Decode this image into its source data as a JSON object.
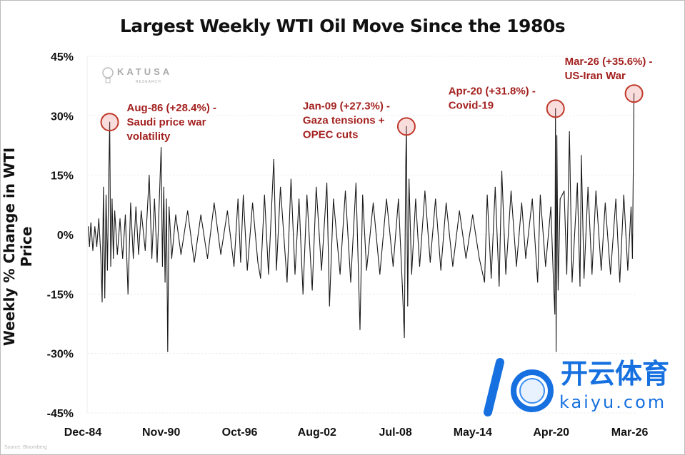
{
  "chart_data": {
    "type": "line",
    "title": "Largest Weekly WTI Oil Move Since the 1980s",
    "xlabel": "",
    "ylabel": "Weekly % Change in WTI Price",
    "ylim": [
      -45,
      45
    ],
    "xlim": [
      1984.92,
      2026.3
    ],
    "yticks": [
      {
        "v": 45,
        "label": "45%"
      },
      {
        "v": 30,
        "label": "30%"
      },
      {
        "v": 15,
        "label": "15%"
      },
      {
        "v": 0,
        "label": "0%"
      },
      {
        "v": -15,
        "label": "-15%"
      },
      {
        "v": -30,
        "label": "-30%"
      },
      {
        "v": -45,
        "label": "-45%"
      }
    ],
    "xticks": [
      {
        "v": 1984.92,
        "label": "Dec-84"
      },
      {
        "v": 1990.83,
        "label": "Nov-90"
      },
      {
        "v": 1996.75,
        "label": "Oct-96"
      },
      {
        "v": 2002.58,
        "label": "Aug-02"
      },
      {
        "v": 2008.5,
        "label": "Jul-08"
      },
      {
        "v": 2014.33,
        "label": "May-14"
      },
      {
        "v": 2020.25,
        "label": "Apr-20"
      },
      {
        "v": 2026.17,
        "label": "Mar-26"
      }
    ],
    "series": [
      {
        "name": "Weekly % change in WTI",
        "color": "#1a1a1a",
        "points": [
          [
            1985.0,
            2
          ],
          [
            1985.1,
            -3
          ],
          [
            1985.2,
            3
          ],
          [
            1985.35,
            -4
          ],
          [
            1985.5,
            2
          ],
          [
            1985.65,
            -3
          ],
          [
            1985.8,
            4
          ],
          [
            1985.95,
            -5
          ],
          [
            1986.05,
            -17
          ],
          [
            1986.15,
            12
          ],
          [
            1986.25,
            -16
          ],
          [
            1986.35,
            10
          ],
          [
            1986.45,
            -9
          ],
          [
            1986.55,
            15
          ],
          [
            1986.62,
            28.4
          ],
          [
            1986.7,
            -8
          ],
          [
            1986.8,
            9
          ],
          [
            1986.9,
            -6
          ],
          [
            1987.0,
            6
          ],
          [
            1987.2,
            -5
          ],
          [
            1987.4,
            4
          ],
          [
            1987.6,
            -6
          ],
          [
            1987.8,
            5
          ],
          [
            1988.0,
            -15
          ],
          [
            1988.2,
            8
          ],
          [
            1988.4,
            -6
          ],
          [
            1988.6,
            7
          ],
          [
            1988.8,
            -5
          ],
          [
            1989.0,
            6
          ],
          [
            1989.3,
            -4
          ],
          [
            1989.6,
            15
          ],
          [
            1989.8,
            -6
          ],
          [
            1990.0,
            9
          ],
          [
            1990.2,
            -7
          ],
          [
            1990.5,
            22
          ],
          [
            1990.6,
            -8
          ],
          [
            1990.7,
            12
          ],
          [
            1990.8,
            -12
          ],
          [
            1990.9,
            9
          ],
          [
            1991.0,
            -29.5
          ],
          [
            1991.1,
            7
          ],
          [
            1991.3,
            -6
          ],
          [
            1991.6,
            5
          ],
          [
            1992.0,
            -5
          ],
          [
            1992.5,
            6
          ],
          [
            1993.0,
            -7
          ],
          [
            1993.5,
            5
          ],
          [
            1994.0,
            -6
          ],
          [
            1994.5,
            8
          ],
          [
            1995.0,
            -5
          ],
          [
            1995.5,
            6
          ],
          [
            1996.0,
            -8
          ],
          [
            1996.3,
            9
          ],
          [
            1996.5,
            -7
          ],
          [
            1996.7,
            10
          ],
          [
            1997.0,
            -9
          ],
          [
            1997.4,
            8
          ],
          [
            1997.8,
            -7
          ],
          [
            1998.0,
            -11
          ],
          [
            1998.3,
            10
          ],
          [
            1998.6,
            -10
          ],
          [
            1999.0,
            19
          ],
          [
            1999.2,
            -9
          ],
          [
            1999.5,
            12
          ],
          [
            2000.0,
            -12
          ],
          [
            2000.3,
            14
          ],
          [
            2000.6,
            -10
          ],
          [
            2000.9,
            9
          ],
          [
            2001.2,
            -15
          ],
          [
            2001.5,
            10
          ],
          [
            2001.9,
            -14
          ],
          [
            2002.2,
            12
          ],
          [
            2002.6,
            -9
          ],
          [
            2003.0,
            13
          ],
          [
            2003.2,
            -18
          ],
          [
            2003.5,
            9
          ],
          [
            2004.0,
            -10
          ],
          [
            2004.4,
            11
          ],
          [
            2004.8,
            -12
          ],
          [
            2005.2,
            13
          ],
          [
            2005.5,
            -24
          ],
          [
            2005.7,
            10
          ],
          [
            2006.0,
            -9
          ],
          [
            2006.5,
            8
          ],
          [
            2007.0,
            -10
          ],
          [
            2007.5,
            9
          ],
          [
            2008.0,
            -8
          ],
          [
            2008.4,
            9
          ],
          [
            2008.7,
            -13
          ],
          [
            2008.85,
            -26
          ],
          [
            2008.95,
            17
          ],
          [
            2009.0,
            27.3
          ],
          [
            2009.1,
            -18
          ],
          [
            2009.2,
            14
          ],
          [
            2009.4,
            -10
          ],
          [
            2009.7,
            9
          ],
          [
            2010.0,
            -8
          ],
          [
            2010.4,
            11
          ],
          [
            2010.8,
            -7
          ],
          [
            2011.2,
            9
          ],
          [
            2011.6,
            -9
          ],
          [
            2012.0,
            8
          ],
          [
            2012.5,
            -8
          ],
          [
            2013.0,
            6
          ],
          [
            2013.5,
            -6
          ],
          [
            2014.0,
            5
          ],
          [
            2014.5,
            -6
          ],
          [
            2014.9,
            -12
          ],
          [
            2015.1,
            10
          ],
          [
            2015.4,
            -11
          ],
          [
            2015.7,
            12
          ],
          [
            2016.0,
            -13
          ],
          [
            2016.2,
            16
          ],
          [
            2016.5,
            -10
          ],
          [
            2016.9,
            11
          ],
          [
            2017.3,
            -8
          ],
          [
            2017.7,
            8
          ],
          [
            2018.0,
            -6
          ],
          [
            2018.5,
            9
          ],
          [
            2018.9,
            -12
          ],
          [
            2019.1,
            10
          ],
          [
            2019.5,
            -8
          ],
          [
            2019.9,
            7
          ],
          [
            2020.1,
            -12
          ],
          [
            2020.2,
            -20
          ],
          [
            2020.25,
            31.8
          ],
          [
            2020.3,
            -29.5
          ],
          [
            2020.35,
            25
          ],
          [
            2020.45,
            -14
          ],
          [
            2020.6,
            9
          ],
          [
            2020.9,
            11
          ],
          [
            2021.1,
            -10
          ],
          [
            2021.3,
            26
          ],
          [
            2021.5,
            -12
          ],
          [
            2021.9,
            13
          ],
          [
            2022.1,
            -13
          ],
          [
            2022.2,
            20
          ],
          [
            2022.4,
            -11
          ],
          [
            2022.7,
            12
          ],
          [
            2023.0,
            -10
          ],
          [
            2023.3,
            11
          ],
          [
            2023.7,
            -9
          ],
          [
            2024.0,
            8
          ],
          [
            2024.4,
            -10
          ],
          [
            2024.8,
            9
          ],
          [
            2025.1,
            -12
          ],
          [
            2025.4,
            10
          ],
          [
            2025.7,
            -9
          ],
          [
            2025.95,
            7
          ],
          [
            2026.05,
            -6
          ],
          [
            2026.17,
            35.6
          ]
        ]
      }
    ],
    "annotations": [
      {
        "x": 1986.62,
        "y": 28.4,
        "lines": [
          "Aug-86 (+28.4%) -",
          "Saudi price war",
          "volatility"
        ],
        "pos": "right"
      },
      {
        "x": 2009.0,
        "y": 27.3,
        "lines": [
          "Jan-09 (+27.3%) -",
          "Gaza tensions +",
          "OPEC cuts"
        ],
        "pos": "left"
      },
      {
        "x": 2020.25,
        "y": 31.8,
        "lines": [
          "Apr-20 (+31.8%) -",
          "Covid-19"
        ],
        "pos": "left"
      },
      {
        "x": 2026.17,
        "y": 35.6,
        "lines": [
          "Mar-26 (+35.6%) -",
          "US-Iran War"
        ],
        "pos": "left-above"
      }
    ],
    "grid": true,
    "colors": {
      "line": "#1a1a1a",
      "annotation": "#a3211f",
      "circle": "#c0392b"
    }
  },
  "branding": {
    "logo_name": "KATUSA",
    "logo_sub": "RESEARCH",
    "source": "Source: Bloomberg"
  },
  "watermark": {
    "cn": "开云体育",
    "en": "kaiyu.com"
  }
}
